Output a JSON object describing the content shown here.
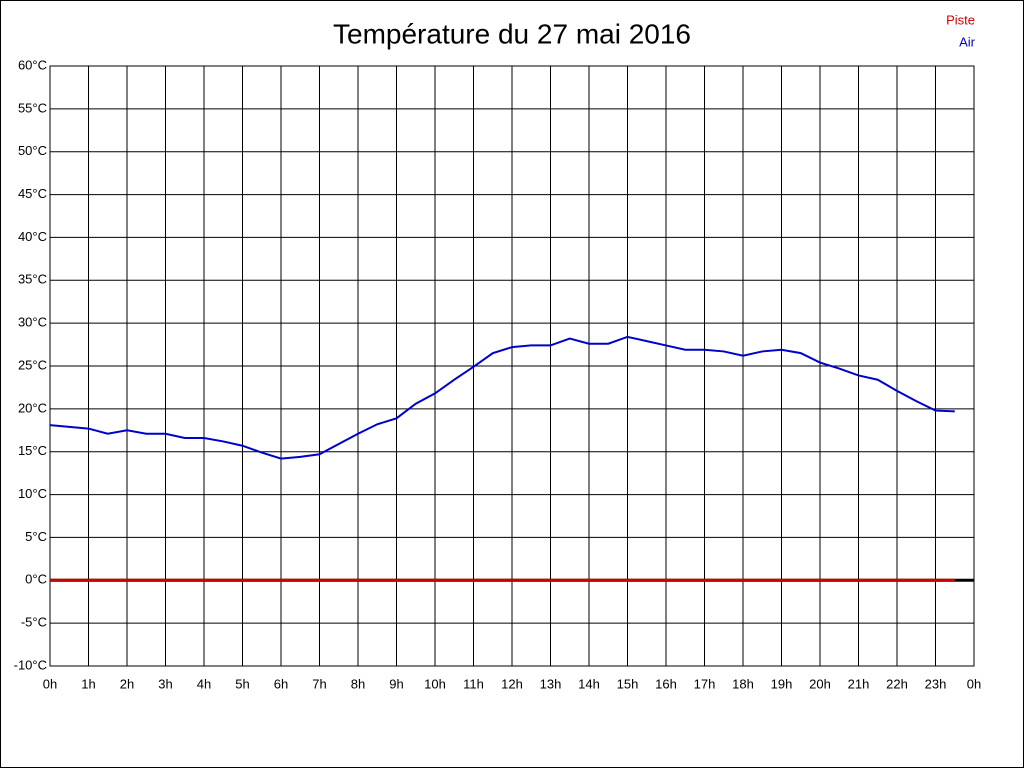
{
  "chart_data": {
    "type": "line",
    "title": "Température du 27 mai 2016",
    "x": [
      0,
      0.5,
      1,
      1.5,
      2,
      2.5,
      3,
      3.5,
      4,
      4.5,
      5,
      5.5,
      6,
      6.5,
      7,
      7.5,
      8,
      8.5,
      9,
      9.5,
      10,
      10.5,
      11,
      11.5,
      12,
      12.5,
      13,
      13.5,
      14,
      14.5,
      15,
      15.5,
      16,
      16.5,
      17,
      17.5,
      18,
      18.5,
      19,
      19.5,
      20,
      20.5,
      21,
      21.5,
      22,
      22.5,
      23,
      23.5
    ],
    "series": [
      {
        "name": "Piste",
        "color": "#cc0000",
        "values": [
          0,
          0,
          0,
          0,
          0,
          0,
          0,
          0,
          0,
          0,
          0,
          0,
          0,
          0,
          0,
          0,
          0,
          0,
          0,
          0,
          0,
          0,
          0,
          0,
          0,
          0,
          0,
          0,
          0,
          0,
          0,
          0,
          0,
          0,
          0,
          0,
          0,
          0,
          0,
          0,
          0,
          0,
          0,
          0,
          0,
          0,
          0,
          0
        ]
      },
      {
        "name": "Air",
        "color": "#0000cc",
        "values": [
          18.1,
          17.9,
          17.7,
          17.1,
          17.5,
          17.1,
          17.1,
          16.6,
          16.6,
          16.2,
          15.7,
          14.9,
          14.2,
          14.4,
          14.7,
          15.9,
          17.1,
          18.2,
          18.9,
          20.6,
          21.8,
          23.4,
          24.9,
          26.5,
          27.2,
          27.4,
          27.4,
          28.2,
          27.6,
          27.6,
          28.4,
          27.9,
          27.4,
          26.9,
          26.9,
          26.7,
          26.2,
          26.7,
          26.9,
          26.5,
          25.4,
          24.7,
          23.9,
          23.4,
          22.1,
          20.9,
          19.8,
          19.7
        ]
      }
    ],
    "xlim": [
      0,
      24
    ],
    "xticks": [
      {
        "value": 0,
        "label": "0h"
      },
      {
        "value": 1,
        "label": "1h"
      },
      {
        "value": 2,
        "label": "2h"
      },
      {
        "value": 3,
        "label": "3h"
      },
      {
        "value": 4,
        "label": "4h"
      },
      {
        "value": 5,
        "label": "5h"
      },
      {
        "value": 6,
        "label": "6h"
      },
      {
        "value": 7,
        "label": "7h"
      },
      {
        "value": 8,
        "label": "8h"
      },
      {
        "value": 9,
        "label": "9h"
      },
      {
        "value": 10,
        "label": "10h"
      },
      {
        "value": 11,
        "label": "11h"
      },
      {
        "value": 12,
        "label": "12h"
      },
      {
        "value": 13,
        "label": "13h"
      },
      {
        "value": 14,
        "label": "14h"
      },
      {
        "value": 15,
        "label": "15h"
      },
      {
        "value": 16,
        "label": "16h"
      },
      {
        "value": 17,
        "label": "17h"
      },
      {
        "value": 18,
        "label": "18h"
      },
      {
        "value": 19,
        "label": "19h"
      },
      {
        "value": 20,
        "label": "20h"
      },
      {
        "value": 21,
        "label": "21h"
      },
      {
        "value": 22,
        "label": "22h"
      },
      {
        "value": 23,
        "label": "23h"
      },
      {
        "value": 24,
        "label": "0h"
      }
    ],
    "ylim": [
      -10,
      60
    ],
    "yticks": [
      {
        "value": -10,
        "label": "-10°C"
      },
      {
        "value": -5,
        "label": "-5°C"
      },
      {
        "value": 0,
        "label": "0°C"
      },
      {
        "value": 5,
        "label": "5°C"
      },
      {
        "value": 10,
        "label": "10°C"
      },
      {
        "value": 15,
        "label": "15°C"
      },
      {
        "value": 20,
        "label": "20°C"
      },
      {
        "value": 25,
        "label": "25°C"
      },
      {
        "value": 30,
        "label": "30°C"
      },
      {
        "value": 35,
        "label": "35°C"
      },
      {
        "value": 40,
        "label": "40°C"
      },
      {
        "value": 45,
        "label": "45°C"
      },
      {
        "value": 50,
        "label": "50°C"
      },
      {
        "value": 55,
        "label": "55°C"
      },
      {
        "value": 60,
        "label": "60°C"
      }
    ],
    "grid": true,
    "legend": "top-right"
  }
}
